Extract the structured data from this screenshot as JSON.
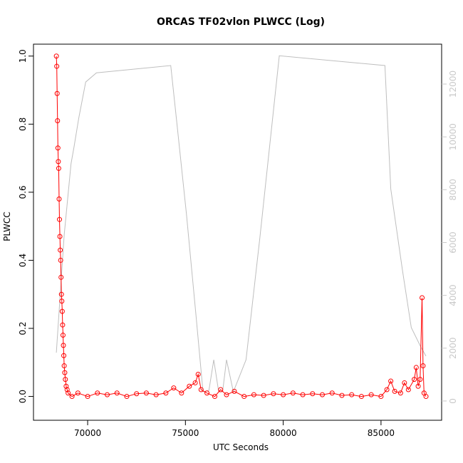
{
  "chart_data": {
    "type": "line",
    "title": "ORCAS TF02vlon PLWCC (Log)",
    "xlabel": "UTC Seconds",
    "ylabel": "PLWCC",
    "xlim": [
      67230,
      88100
    ],
    "xticks": [
      70000,
      75000,
      80000,
      85000
    ],
    "ylim": [
      -0.07,
      1.035
    ],
    "yticks": [
      {
        "value": 0,
        "label": "0.0"
      },
      {
        "value": 0.2,
        "label": "0.2"
      },
      {
        "value": 0.4,
        "label": "0.4"
      },
      {
        "value": 0.6,
        "label": "0.6"
      },
      {
        "value": 0.8,
        "label": "0.8"
      },
      {
        "value": 1,
        "label": "1.0"
      }
    ],
    "y2lim": [
      -730,
      13510
    ],
    "y2ticks": [
      0,
      2000,
      4000,
      6000,
      8000,
      10000,
      12000
    ],
    "y2color": "#c8c8c8",
    "series": [
      {
        "color": "#bebebe",
        "axis": "y2",
        "markers": false,
        "x": [
          68400,
          68800,
          69150,
          69300,
          69550,
          69900,
          70450,
          74250,
          74550,
          75050,
          75530,
          75900,
          76200,
          76450,
          76700,
          76900,
          77100,
          77450,
          78100,
          78800,
          79800,
          85200,
          85500,
          86100,
          86550,
          87000,
          87300
        ],
        "values": [
          1830,
          6280,
          8980,
          9600,
          10730,
          12075,
          12425,
          12700,
          10600,
          7090,
          3315,
          350,
          400,
          1560,
          350,
          350,
          1560,
          350,
          1560,
          6150,
          13070,
          12700,
          8030,
          4930,
          2780,
          2100,
          1700
        ]
      },
      {
        "name": "PLWCC",
        "color": "#ff0000",
        "markers": true,
        "x": [
          68400,
          68420,
          68440,
          68460,
          68480,
          68500,
          68520,
          68540,
          68560,
          68580,
          68600,
          68620,
          68640,
          68660,
          68680,
          68700,
          68720,
          68740,
          68760,
          68780,
          68800,
          68830,
          68860,
          68900,
          68950,
          69000,
          69200,
          69500,
          70000,
          70500,
          71000,
          71500,
          72000,
          72500,
          73000,
          73500,
          74000,
          74400,
          74800,
          75200,
          75500,
          75650,
          75800,
          76100,
          76500,
          76800,
          77100,
          77500,
          78000,
          78500,
          79000,
          79500,
          80000,
          80500,
          81000,
          81500,
          82000,
          82500,
          83000,
          83500,
          84000,
          84500,
          85000,
          85300,
          85500,
          85700,
          86000,
          86200,
          86400,
          86700,
          86800,
          86900,
          87000,
          87100,
          87150,
          87200,
          87300
        ],
        "values": [
          1.0,
          0.97,
          0.89,
          0.81,
          0.73,
          0.69,
          0.67,
          0.58,
          0.52,
          0.47,
          0.43,
          0.4,
          0.35,
          0.3,
          0.28,
          0.25,
          0.21,
          0.18,
          0.15,
          0.12,
          0.09,
          0.07,
          0.05,
          0.03,
          0.02,
          0.01,
          0,
          0.01,
          0,
          0.01,
          0.005,
          0.01,
          0,
          0.008,
          0.01,
          0.005,
          0.01,
          0.025,
          0.01,
          0.03,
          0.04,
          0.065,
          0.02,
          0.01,
          0,
          0.02,
          0.005,
          0.015,
          0,
          0.005,
          0.003,
          0.008,
          0.005,
          0.01,
          0.005,
          0.008,
          0.005,
          0.01,
          0.003,
          0.005,
          0,
          0.005,
          0,
          0.02,
          0.045,
          0.015,
          0.01,
          0.04,
          0.02,
          0.05,
          0.085,
          0.03,
          0.05,
          0.29,
          0.09,
          0.01,
          0
        ]
      }
    ]
  }
}
